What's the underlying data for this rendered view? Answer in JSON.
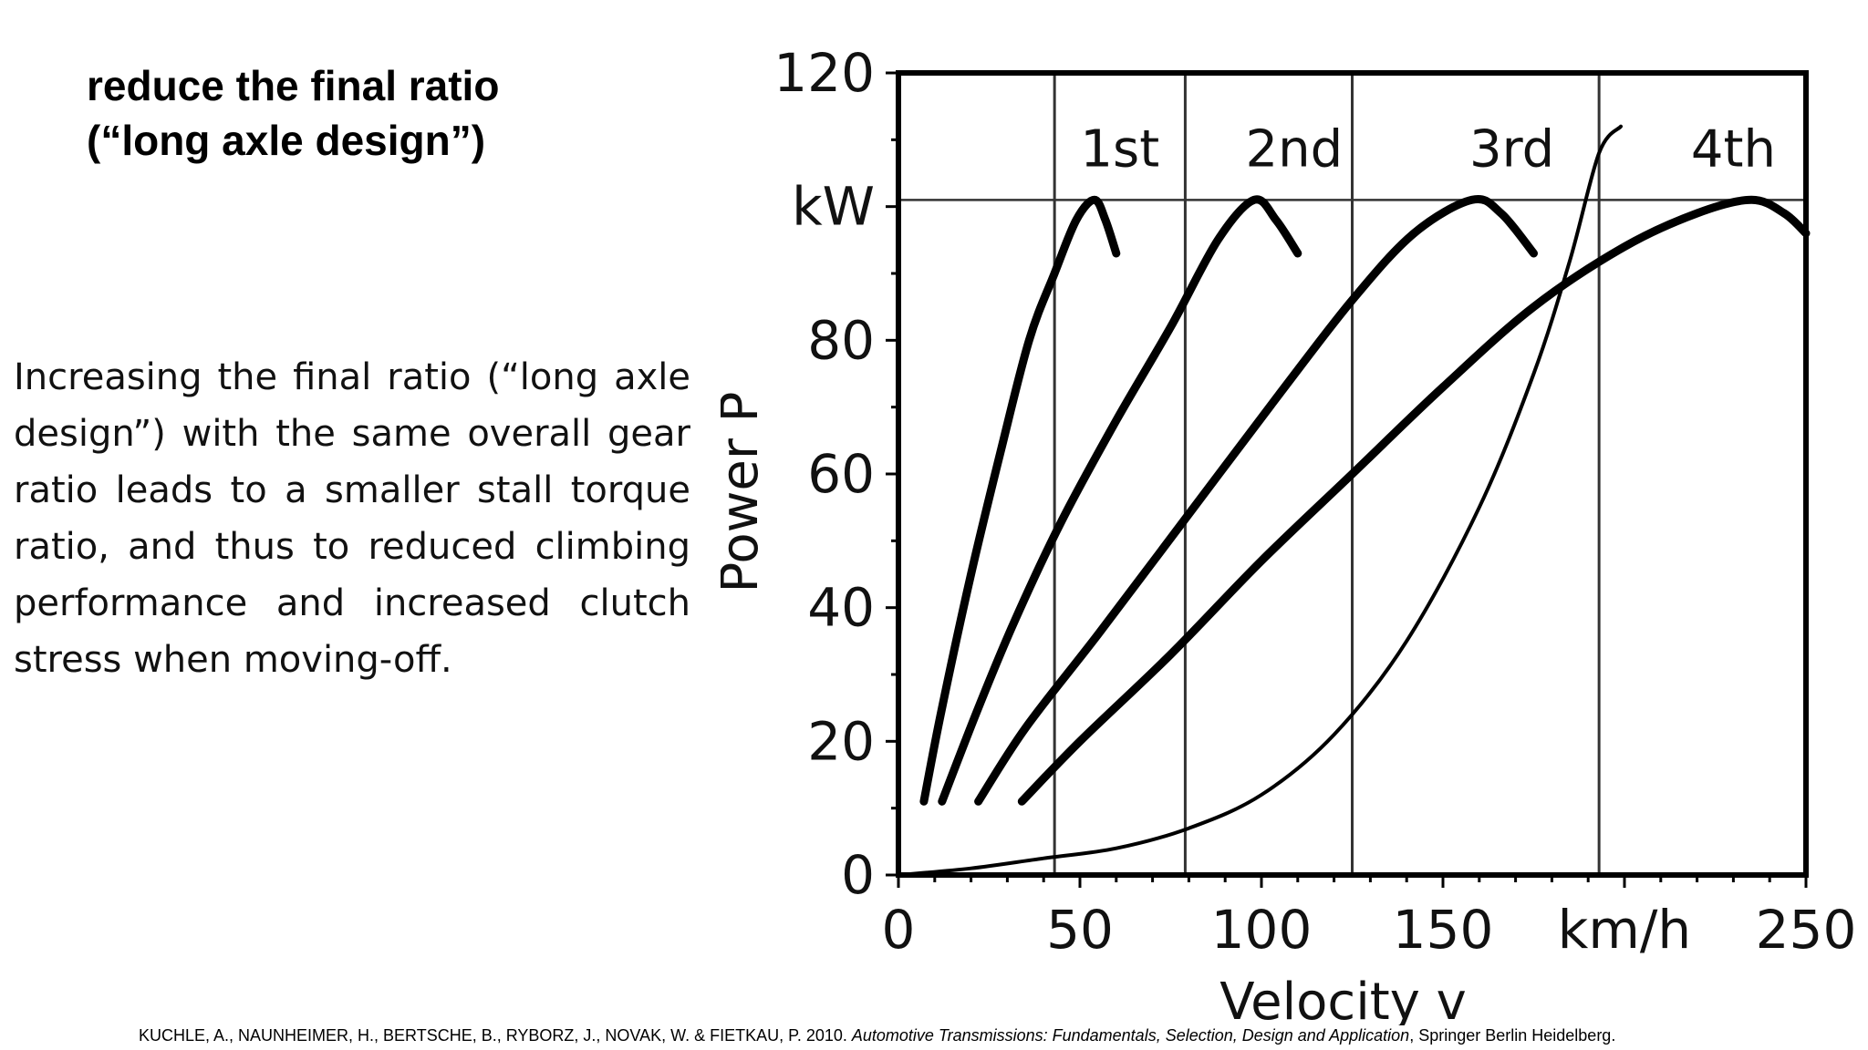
{
  "slide": {
    "title_lines": [
      "reduce the final ratio",
      "(“long axle design”)"
    ],
    "body": "Increasing the final ratio (“long axle design”) with the same overall gear ratio leads to a smaller stall torque ratio, and thus to reduced climbing performance and increased clutch stress when moving-off.",
    "citation": {
      "authors": "KUCHLE, A., NAUNHEIMER, H., BERTSCHE, B., RYBORZ, J., NOVAK, W. & FIETKAU, P. 2010.",
      "book": "Automotive Transmissions: Fundamentals, Selection, Design and Application",
      "publisher": ", Springer Berlin Heidelberg."
    }
  },
  "chart_data": {
    "type": "line",
    "xlabel": "Velocity v",
    "ylabel": "Power P",
    "xlim": [
      0,
      250
    ],
    "ylim": [
      0,
      120
    ],
    "x_ticks": [
      {
        "value": 0,
        "label": "0"
      },
      {
        "value": 50,
        "label": "50"
      },
      {
        "value": 100,
        "label": "100"
      },
      {
        "value": 150,
        "label": "150"
      },
      {
        "value": 200,
        "label": "km/h"
      },
      {
        "value": 250,
        "label": "250"
      }
    ],
    "y_ticks": [
      {
        "value": 0,
        "label": "0"
      },
      {
        "value": 20,
        "label": "20"
      },
      {
        "value": 40,
        "label": "40"
      },
      {
        "value": 60,
        "label": "60"
      },
      {
        "value": 80,
        "label": "80"
      },
      {
        "value": 100,
        "label": "kW"
      },
      {
        "value": 120,
        "label": "120"
      }
    ],
    "reference_lines": {
      "horizontal_y": 101,
      "vertical_x": [
        43,
        79,
        125,
        193
      ]
    },
    "series": [
      {
        "name": "1st",
        "label_at": [
          61,
          106
        ],
        "points": [
          [
            7,
            11
          ],
          [
            12,
            25
          ],
          [
            20,
            45
          ],
          [
            28,
            63
          ],
          [
            36,
            80
          ],
          [
            43,
            90
          ],
          [
            49,
            98
          ],
          [
            54,
            101
          ],
          [
            57,
            98
          ],
          [
            60,
            93
          ]
        ]
      },
      {
        "name": "2nd",
        "label_at": [
          109,
          106
        ],
        "points": [
          [
            12,
            11
          ],
          [
            22,
            25
          ],
          [
            32,
            38
          ],
          [
            45,
            53
          ],
          [
            60,
            68
          ],
          [
            75,
            82
          ],
          [
            88,
            95
          ],
          [
            98,
            101
          ],
          [
            104,
            98
          ],
          [
            110,
            93
          ]
        ]
      },
      {
        "name": "3rd",
        "label_at": [
          169,
          106
        ],
        "points": [
          [
            22,
            11
          ],
          [
            35,
            22
          ],
          [
            55,
            36
          ],
          [
            80,
            54
          ],
          [
            105,
            72
          ],
          [
            125,
            86
          ],
          [
            142,
            96
          ],
          [
            158,
            101
          ],
          [
            166,
            99
          ],
          [
            175,
            93
          ]
        ]
      },
      {
        "name": "4th",
        "label_at": [
          230,
          106
        ],
        "points": [
          [
            34,
            11
          ],
          [
            50,
            20
          ],
          [
            75,
            33
          ],
          [
            100,
            47
          ],
          [
            125,
            60
          ],
          [
            150,
            73
          ],
          [
            175,
            85
          ],
          [
            200,
            94
          ],
          [
            220,
            99
          ],
          [
            235,
            101
          ],
          [
            244,
            99
          ],
          [
            250,
            96
          ]
        ]
      },
      {
        "name": "",
        "points": [
          [
            0,
            0
          ],
          [
            20,
            1
          ],
          [
            40,
            2.5
          ],
          [
            60,
            4
          ],
          [
            80,
            7
          ],
          [
            100,
            12
          ],
          [
            120,
            21
          ],
          [
            140,
            35
          ],
          [
            160,
            55
          ],
          [
            175,
            75
          ],
          [
            185,
            92
          ],
          [
            193,
            108
          ],
          [
            199,
            112
          ]
        ]
      }
    ]
  }
}
